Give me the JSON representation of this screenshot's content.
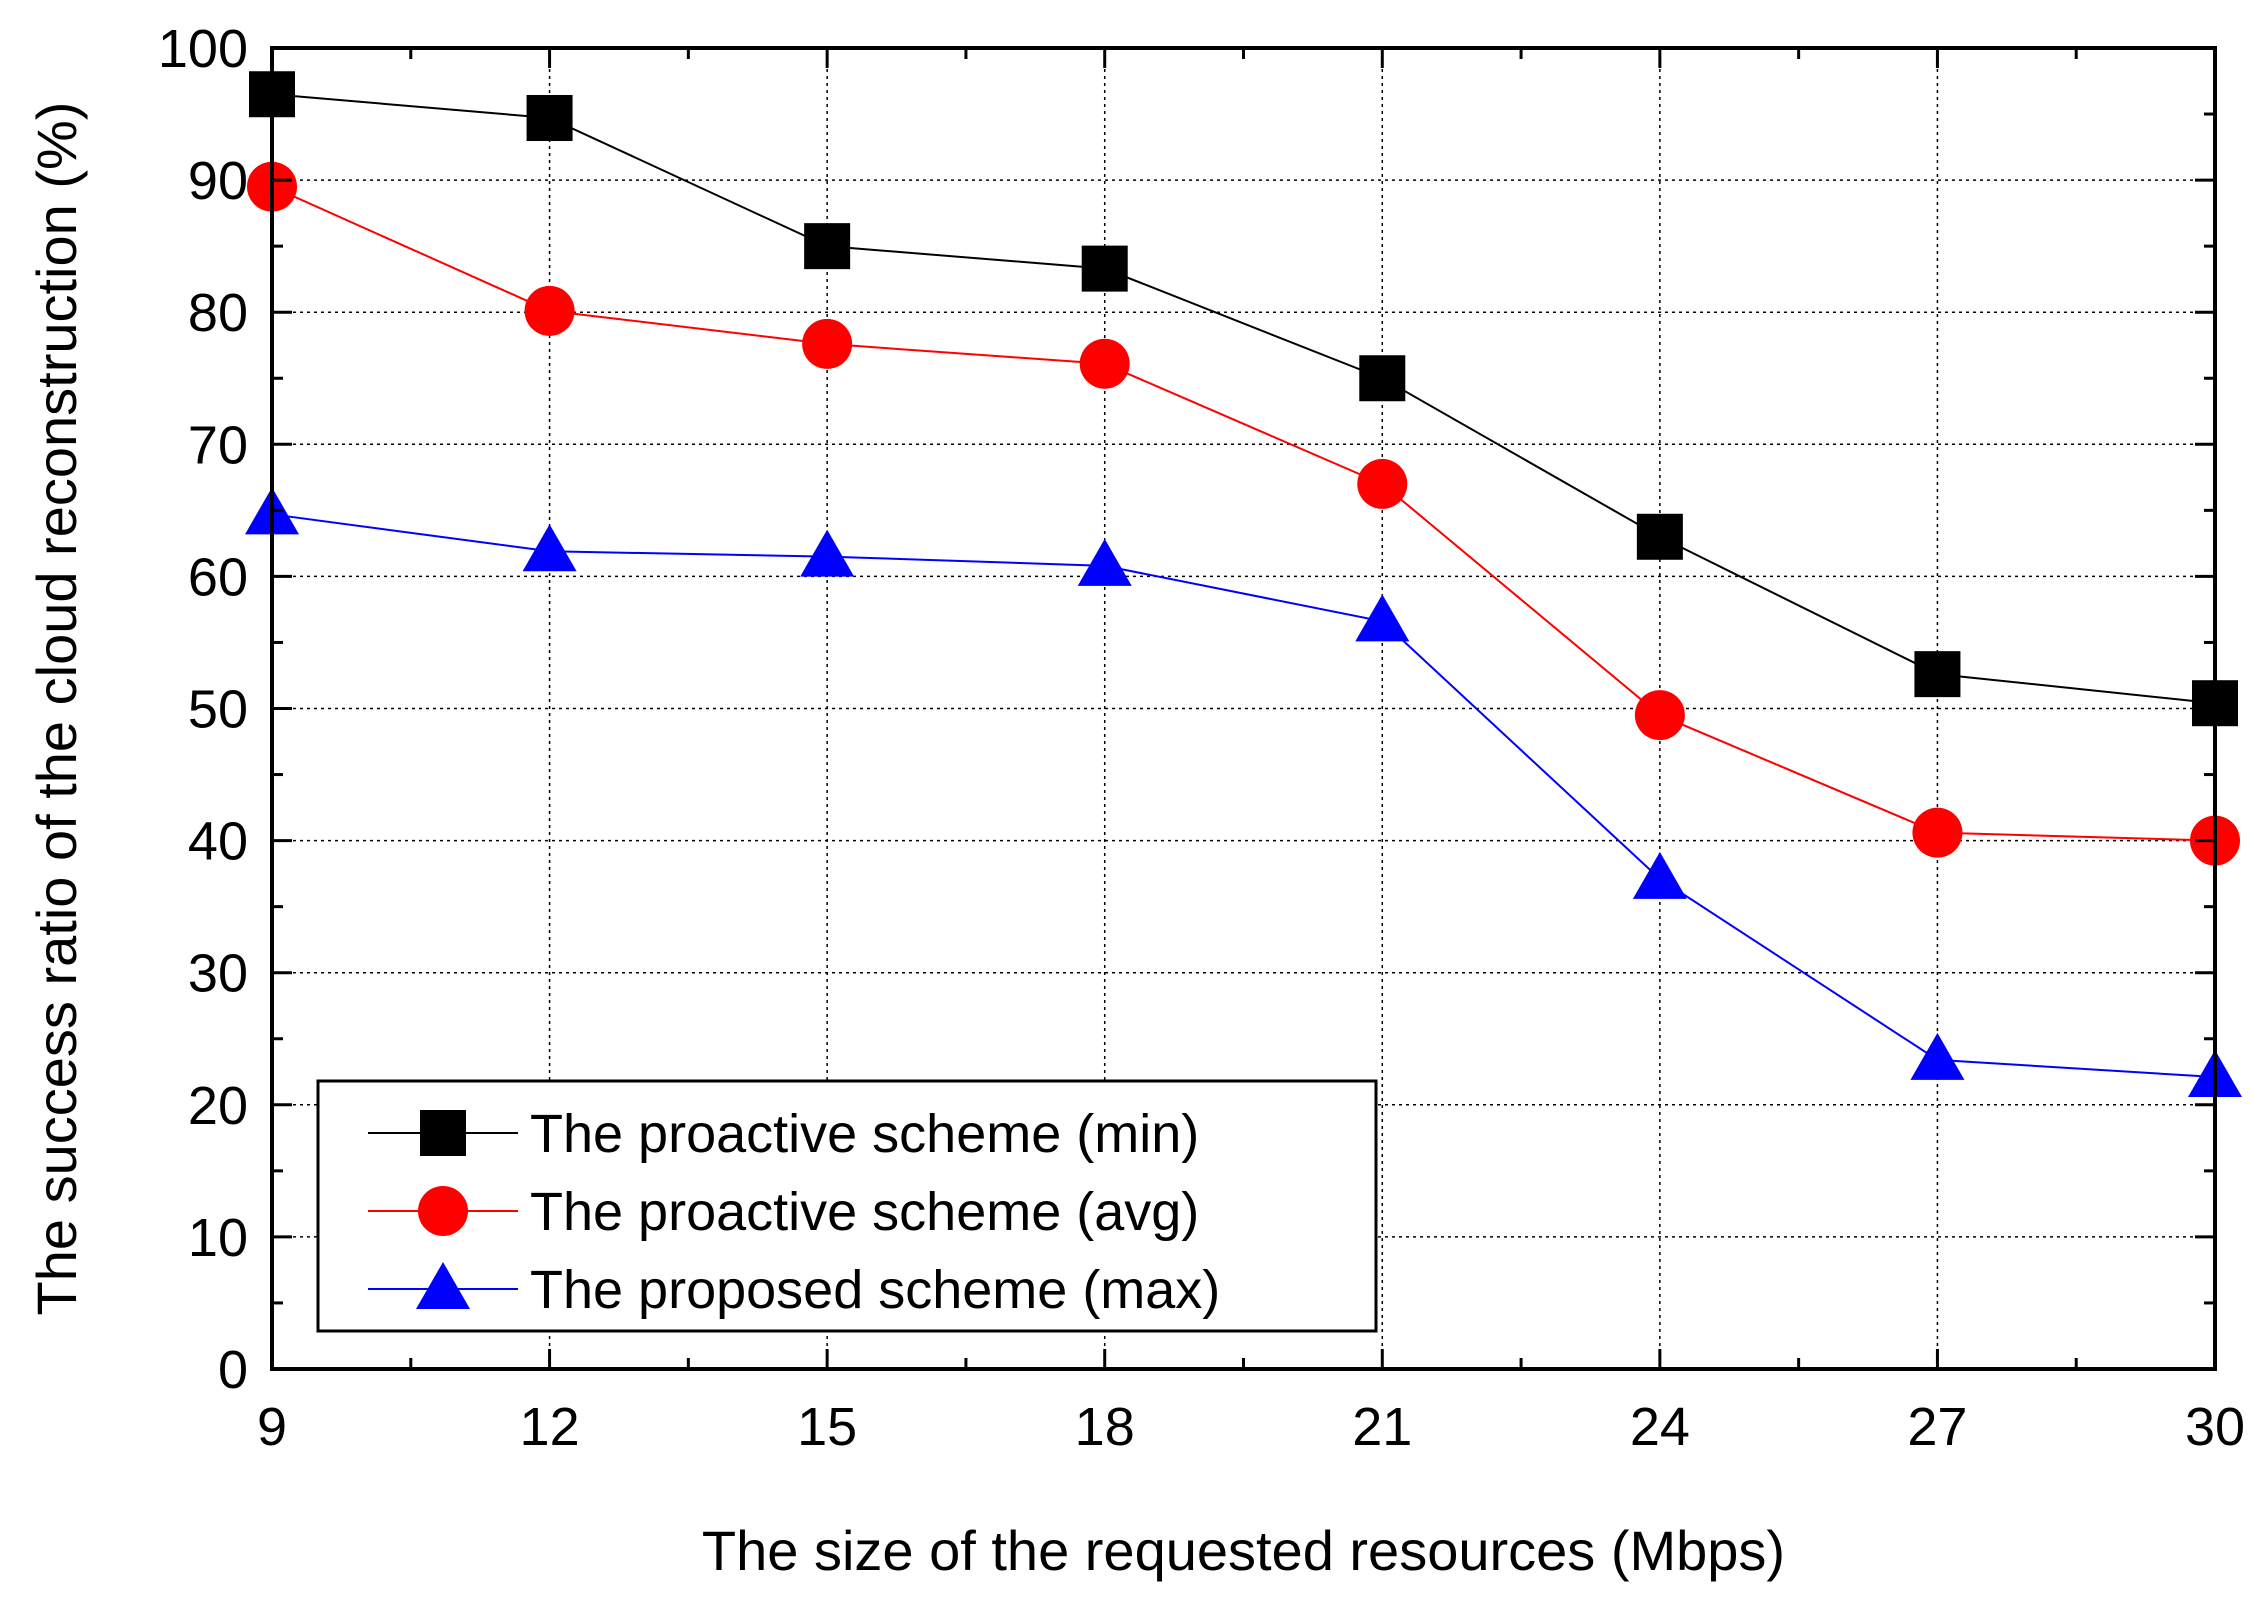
{
  "chart_data": {
    "type": "line",
    "xlabel": "The size of the requested resources (Mbps)",
    "ylabel": "The success ratio of the cloud reconstruction (%)",
    "x": [
      9,
      12,
      15,
      18,
      21,
      24,
      27,
      30
    ],
    "xlim": [
      9,
      30
    ],
    "ylim": [
      0,
      100
    ],
    "x_ticks": [
      "9",
      "12",
      "15",
      "18",
      "21",
      "24",
      "27",
      "30"
    ],
    "y_ticks": [
      "0",
      "10",
      "20",
      "30",
      "40",
      "50",
      "60",
      "70",
      "80",
      "90",
      "100"
    ],
    "grid": true,
    "legend_position": "bottom-left",
    "series": [
      {
        "name": "The proactive scheme (min)",
        "color": "#000000",
        "marker": "square",
        "values": [
          96.5,
          94.7,
          85.0,
          83.3,
          75.0,
          63.0,
          52.6,
          50.4
        ]
      },
      {
        "name": "The proactive scheme (avg)",
        "color": "#ff0000",
        "marker": "circle",
        "values": [
          89.5,
          80.1,
          77.6,
          76.1,
          67.0,
          49.5,
          40.6,
          40.0
        ]
      },
      {
        "name": "The proposed scheme (max)",
        "color": "#0000ff",
        "marker": "triangle",
        "values": [
          64.7,
          61.9,
          61.5,
          60.8,
          56.6,
          37.1,
          23.4,
          22.1
        ]
      }
    ]
  }
}
